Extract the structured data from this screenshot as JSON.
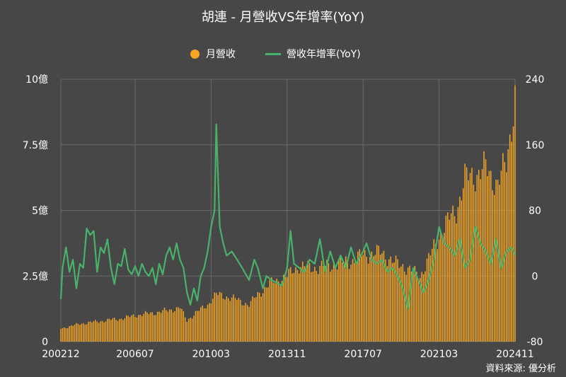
{
  "title": "胡連 - 月營收VS年增率(YoY)",
  "source": "資料來源: 優分析",
  "colors": {
    "background": "#474747",
    "bar": "#f6a623",
    "line": "#48b26a",
    "grid": "#6a6a6a",
    "axis_text": "#ffffff"
  },
  "chart_data": {
    "type": "bar+line",
    "x_start": "2002-12",
    "x_end": "2024-11",
    "xticks": [
      "200212",
      "200607",
      "201003",
      "201311",
      "201707",
      "202103",
      "202411"
    ],
    "y_left": {
      "ticks": [
        "0",
        "2.5億",
        "5億",
        "7.5億",
        "10億"
      ],
      "ylim": [
        0,
        10
      ],
      "unit": "億"
    },
    "y_right": {
      "ticks": [
        "-80",
        "0",
        "80",
        "160",
        "240"
      ],
      "ylim": [
        -80,
        240
      ]
    },
    "legend": {
      "position": "top-center"
    },
    "series": [
      {
        "name": "月營收",
        "type": "bar",
        "axis": "left",
        "color": "#f6a623",
        "anchors": [
          [
            "2002-12",
            0.5
          ],
          [
            "2003-06",
            0.6
          ],
          [
            "2004-01",
            0.7
          ],
          [
            "2005-01",
            0.8
          ],
          [
            "2006-01",
            0.9
          ],
          [
            "2006-07",
            1.0
          ],
          [
            "2007-06",
            1.1
          ],
          [
            "2008-03",
            1.2
          ],
          [
            "2008-09",
            1.3
          ],
          [
            "2009-01",
            0.8
          ],
          [
            "2009-06",
            1.1
          ],
          [
            "2010-01",
            1.4
          ],
          [
            "2010-03",
            1.6
          ],
          [
            "2010-06",
            1.8
          ],
          [
            "2011-01",
            1.7
          ],
          [
            "2011-06",
            1.6
          ],
          [
            "2012-01",
            1.4
          ],
          [
            "2012-06",
            1.8
          ],
          [
            "2013-01",
            2.2
          ],
          [
            "2013-11",
            2.5
          ],
          [
            "2014-06",
            2.9
          ],
          [
            "2015-01",
            2.8
          ],
          [
            "2016-01",
            2.9
          ],
          [
            "2017-01",
            3.1
          ],
          [
            "2017-07",
            3.3
          ],
          [
            "2018-06",
            3.4
          ],
          [
            "2019-01",
            3.0
          ],
          [
            "2019-06",
            2.9
          ],
          [
            "2020-04",
            2.5
          ],
          [
            "2020-10",
            3.3
          ],
          [
            "2021-03",
            4.0
          ],
          [
            "2021-08",
            4.6
          ],
          [
            "2022-01",
            5.0
          ],
          [
            "2022-06",
            6.2
          ],
          [
            "2023-01",
            6.4
          ],
          [
            "2023-06",
            6.6
          ],
          [
            "2024-01",
            6.0
          ],
          [
            "2024-06",
            6.8
          ],
          [
            "2024-11",
            9.4
          ]
        ]
      },
      {
        "name": "營收年增率(YoY)",
        "type": "line",
        "axis": "right",
        "color": "#48b26a",
        "points": [
          [
            "2002-12",
            -28
          ],
          [
            "2003-01",
            10
          ],
          [
            "2003-03",
            35
          ],
          [
            "2003-05",
            5
          ],
          [
            "2003-07",
            20
          ],
          [
            "2003-09",
            -15
          ],
          [
            "2003-11",
            15
          ],
          [
            "2004-01",
            10
          ],
          [
            "2004-03",
            58
          ],
          [
            "2004-05",
            50
          ],
          [
            "2004-07",
            55
          ],
          [
            "2004-09",
            5
          ],
          [
            "2004-11",
            35
          ],
          [
            "2005-01",
            28
          ],
          [
            "2005-03",
            45
          ],
          [
            "2005-05",
            10
          ],
          [
            "2005-07",
            -10
          ],
          [
            "2005-09",
            15
          ],
          [
            "2005-11",
            12
          ],
          [
            "2006-01",
            33
          ],
          [
            "2006-03",
            8
          ],
          [
            "2006-05",
            2
          ],
          [
            "2006-07",
            12
          ],
          [
            "2006-09",
            0
          ],
          [
            "2006-11",
            15
          ],
          [
            "2007-01",
            5
          ],
          [
            "2007-03",
            0
          ],
          [
            "2007-05",
            10
          ],
          [
            "2007-07",
            -10
          ],
          [
            "2007-09",
            15
          ],
          [
            "2007-11",
            2
          ],
          [
            "2008-01",
            25
          ],
          [
            "2008-03",
            35
          ],
          [
            "2008-05",
            20
          ],
          [
            "2008-07",
            40
          ],
          [
            "2008-09",
            20
          ],
          [
            "2008-11",
            10
          ],
          [
            "2009-01",
            -20
          ],
          [
            "2009-03",
            -35
          ],
          [
            "2009-05",
            -15
          ],
          [
            "2009-07",
            -30
          ],
          [
            "2009-09",
            0
          ],
          [
            "2009-11",
            10
          ],
          [
            "2010-01",
            30
          ],
          [
            "2010-03",
            60
          ],
          [
            "2010-05",
            80
          ],
          [
            "2010-06",
            185
          ],
          [
            "2010-08",
            60
          ],
          [
            "2010-10",
            40
          ],
          [
            "2010-12",
            25
          ],
          [
            "2011-03",
            30
          ],
          [
            "2011-06",
            20
          ],
          [
            "2011-09",
            10
          ],
          [
            "2012-01",
            -5
          ],
          [
            "2012-04",
            20
          ],
          [
            "2012-06",
            10
          ],
          [
            "2012-09",
            -15
          ],
          [
            "2012-11",
            0
          ],
          [
            "2013-02",
            -5
          ],
          [
            "2013-05",
            -8
          ],
          [
            "2013-08",
            -12
          ],
          [
            "2013-11",
            10
          ],
          [
            "2014-01",
            55
          ],
          [
            "2014-03",
            15
          ],
          [
            "2014-06",
            10
          ],
          [
            "2014-09",
            5
          ],
          [
            "2014-12",
            20
          ],
          [
            "2015-03",
            15
          ],
          [
            "2015-06",
            45
          ],
          [
            "2015-09",
            5
          ],
          [
            "2015-12",
            30
          ],
          [
            "2016-03",
            10
          ],
          [
            "2016-06",
            25
          ],
          [
            "2016-09",
            10
          ],
          [
            "2016-12",
            35
          ],
          [
            "2017-03",
            15
          ],
          [
            "2017-07",
            30
          ],
          [
            "2017-09",
            40
          ],
          [
            "2017-12",
            20
          ],
          [
            "2018-03",
            15
          ],
          [
            "2018-06",
            20
          ],
          [
            "2018-09",
            5
          ],
          [
            "2018-12",
            10
          ],
          [
            "2019-03",
            0
          ],
          [
            "2019-06",
            -15
          ],
          [
            "2019-09",
            -40
          ],
          [
            "2019-12",
            10
          ],
          [
            "2020-03",
            -5
          ],
          [
            "2020-06",
            -20
          ],
          [
            "2020-09",
            -5
          ],
          [
            "2020-12",
            20
          ],
          [
            "2021-03",
            60
          ],
          [
            "2021-06",
            40
          ],
          [
            "2021-09",
            35
          ],
          [
            "2021-12",
            25
          ],
          [
            "2022-03",
            45
          ],
          [
            "2022-06",
            10
          ],
          [
            "2022-09",
            20
          ],
          [
            "2022-12",
            60
          ],
          [
            "2023-03",
            40
          ],
          [
            "2023-06",
            30
          ],
          [
            "2023-09",
            15
          ],
          [
            "2023-12",
            45
          ],
          [
            "2024-03",
            10
          ],
          [
            "2024-06",
            30
          ],
          [
            "2024-09",
            35
          ],
          [
            "2024-11",
            25
          ]
        ]
      }
    ]
  }
}
